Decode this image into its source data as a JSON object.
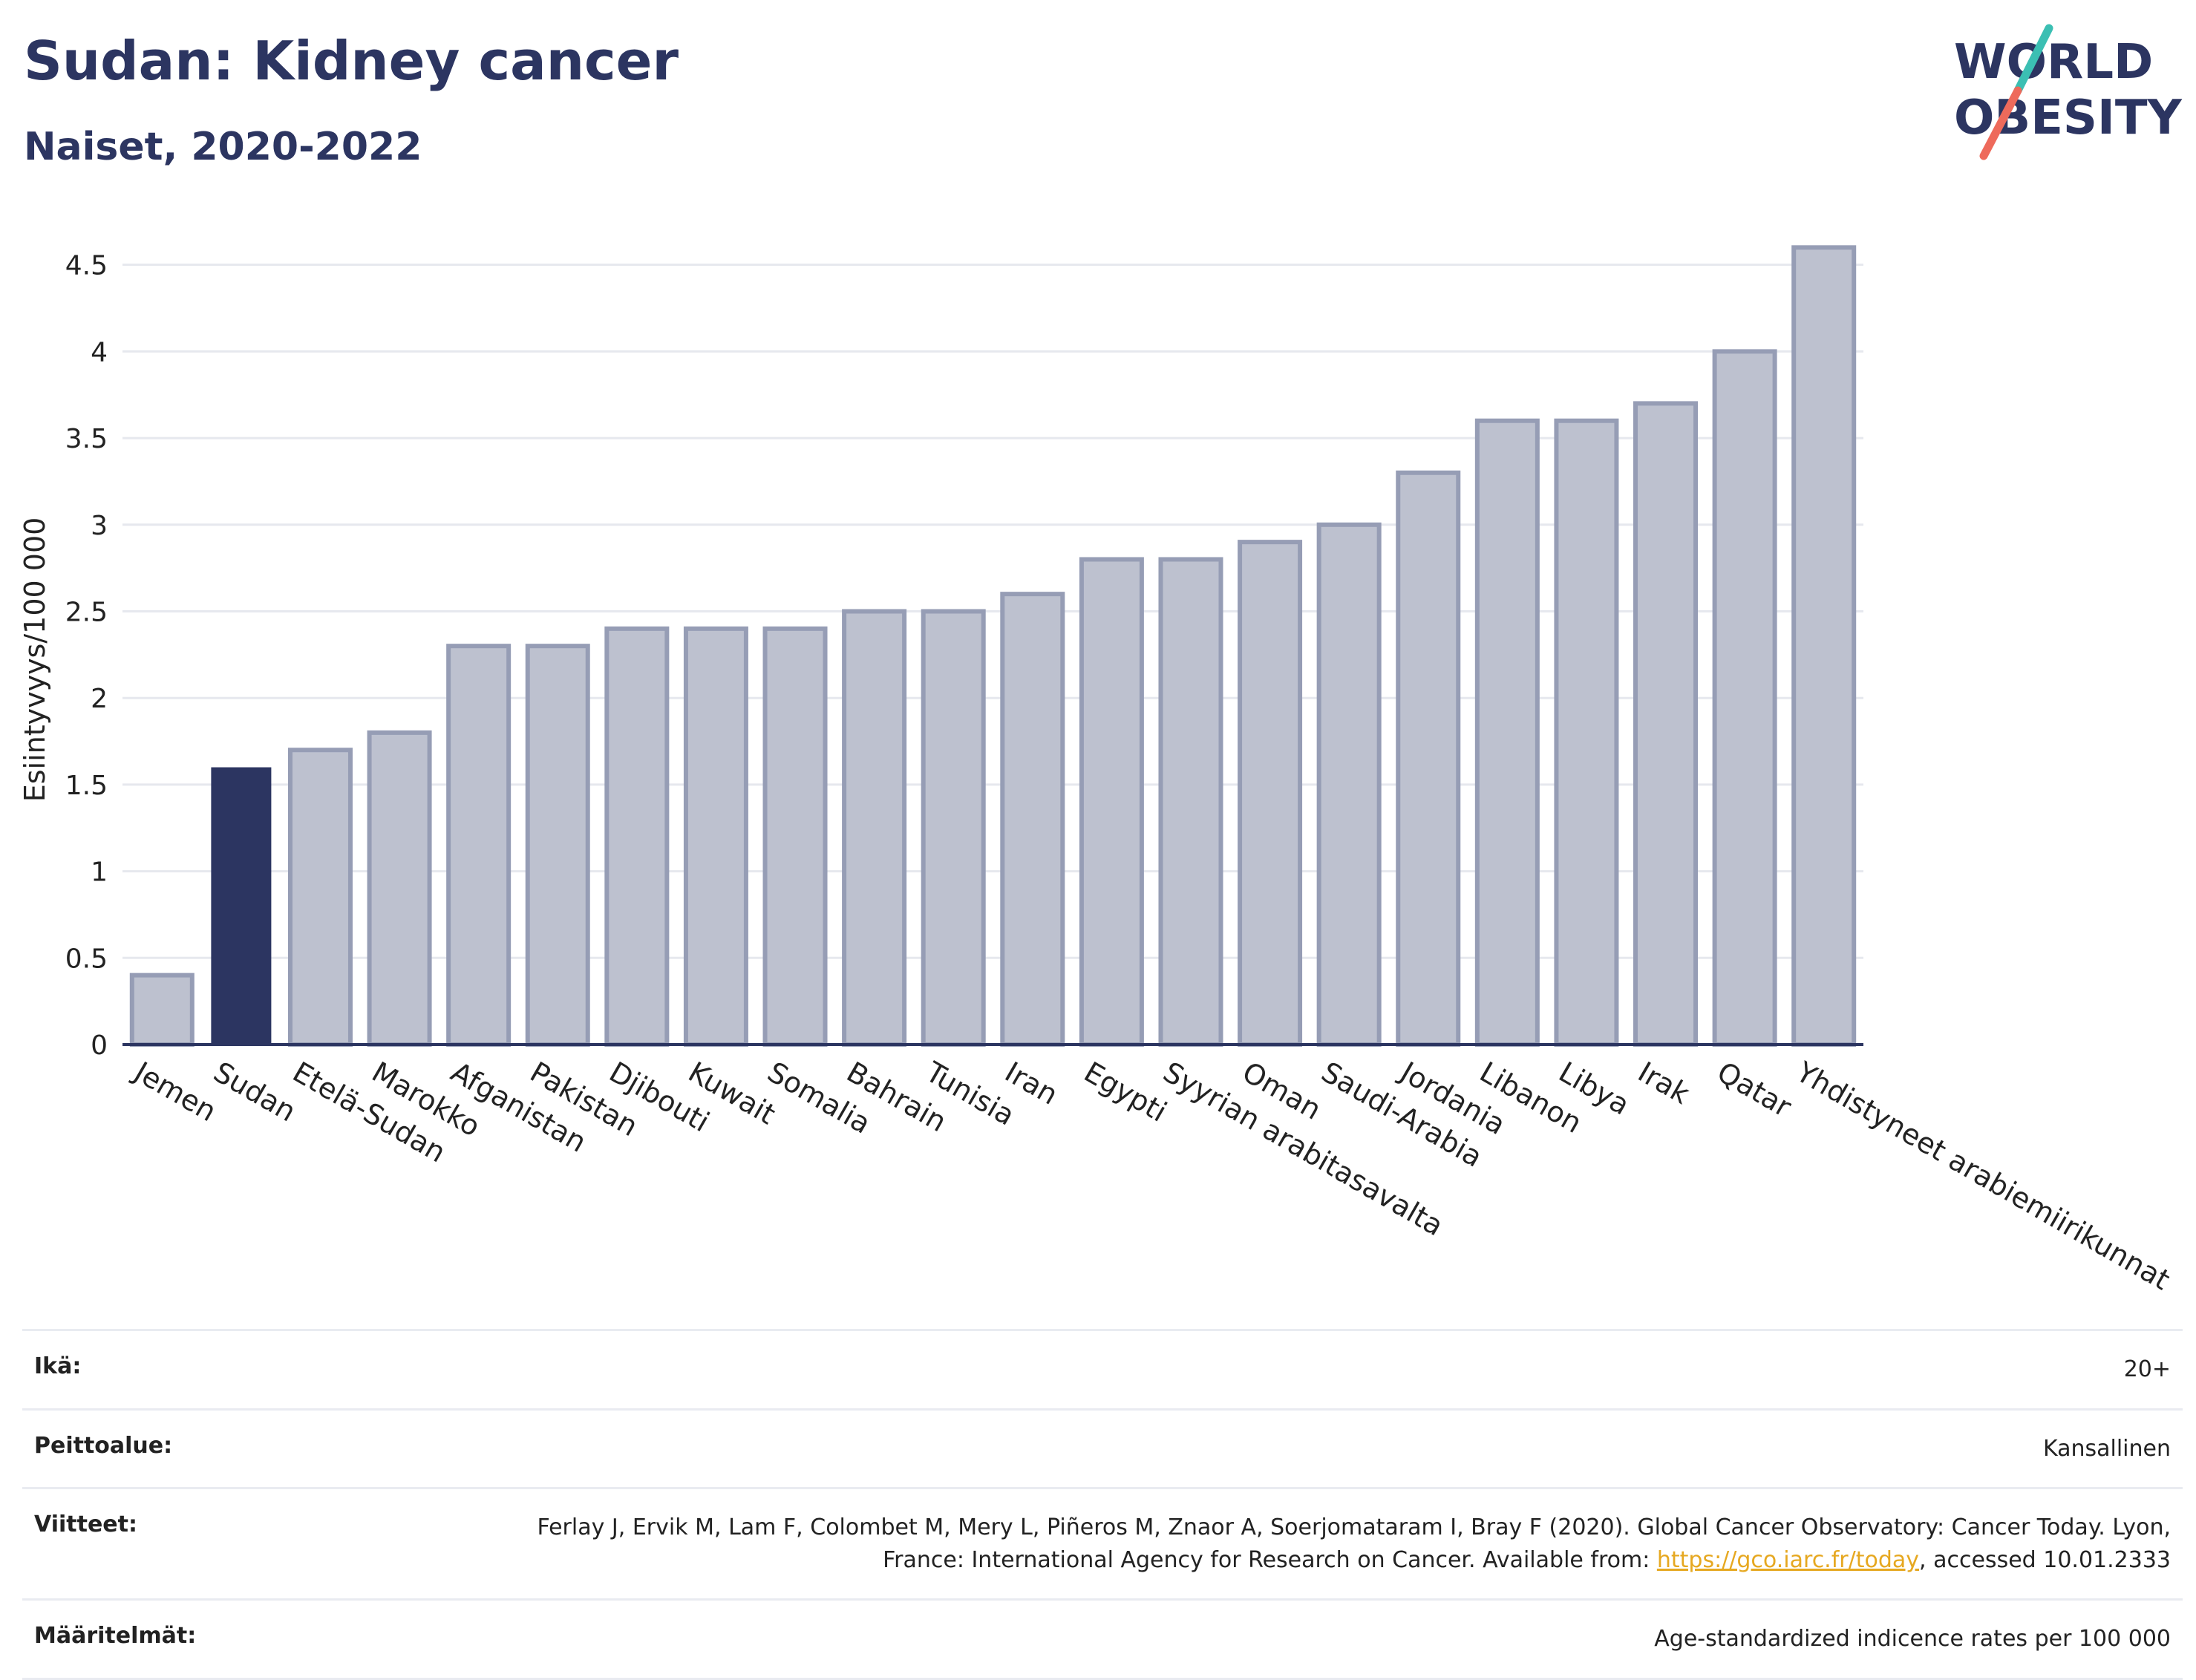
{
  "header": {
    "title": "Sudan: Kidney cancer",
    "subtitle": "Naiset, 2020-2022",
    "logo": {
      "line1": "WORLD",
      "line2": "OBESITY"
    }
  },
  "chart_data": {
    "type": "bar",
    "categories": [
      "Jemen",
      "Sudan",
      "Etelä-Sudan",
      "Marokko",
      "Afganistan",
      "Pakistan",
      "Djibouti",
      "Kuwait",
      "Somalia",
      "Bahrain",
      "Tunisia",
      "Iran",
      "Egypti",
      "Syyrian arabitasavalta",
      "Oman",
      "Saudi-Arabia",
      "Jordania",
      "Libanon",
      "Libya",
      "Irak",
      "Qatar",
      "Yhdistyneet arabiemiirikunnat"
    ],
    "values": [
      0.4,
      1.6,
      1.7,
      1.8,
      2.3,
      2.3,
      2.4,
      2.4,
      2.4,
      2.5,
      2.5,
      2.6,
      2.8,
      2.8,
      2.9,
      3.0,
      3.3,
      3.6,
      3.6,
      3.7,
      4.0,
      4.6
    ],
    "highlight": "Sudan",
    "ylabel": "Esiintyvyys/100 000",
    "ylim": [
      0,
      4.7
    ],
    "yticks": [
      0,
      0.5,
      1,
      1.5,
      2,
      2.5,
      3,
      3.5,
      4,
      4.5
    ],
    "ytick_labels": [
      "0",
      "0.5",
      "1",
      "1.5",
      "2",
      "2.5",
      "3",
      "3.5",
      "4",
      "4.5"
    ],
    "grid": true,
    "colors": {
      "bar": "#bdc1cf",
      "bar_edge": "#969db5",
      "highlight": "#2c3561",
      "grid": "#e6e8ee",
      "axis": "#2c3561"
    }
  },
  "info": {
    "age": {
      "label": "Ikä:",
      "value": "20+"
    },
    "coverage": {
      "label": "Peittoalue:",
      "value": "Kansallinen"
    },
    "references": {
      "label": "Viitteet:",
      "text_before": "Ferlay J, Ervik M, Lam F, Colombet M, Mery L, Piñeros M, Znaor A, Soerjomataram I, Bray F (2020). Global Cancer Observatory: Cancer Today. Lyon, France: International Agency for Research on Cancer. Available from: ",
      "link": "https://gco.iarc.fr/today",
      "text_after": ", accessed 10.01.2333"
    },
    "definitions": {
      "label": "Määritelmät:",
      "value": "Age-standardized indicence rates per 100 000"
    }
  }
}
